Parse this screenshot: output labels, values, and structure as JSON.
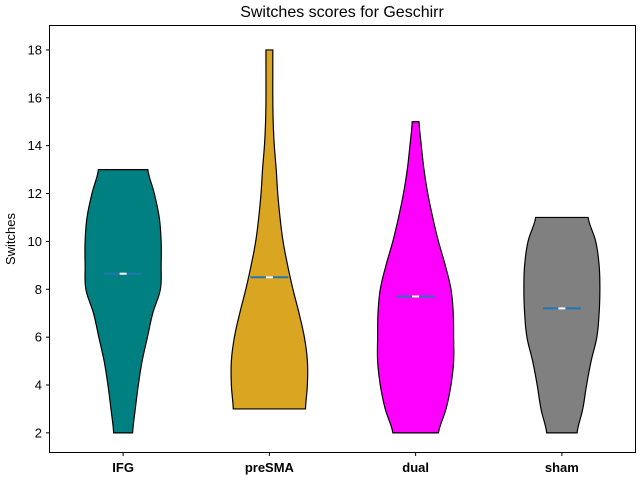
{
  "chart_data": {
    "type": "violin",
    "title": "Switches scores for Geschirr",
    "xlabel": "",
    "ylabel": "Switches",
    "ylim": [
      1.2,
      19.0
    ],
    "yticks": [
      2,
      4,
      6,
      8,
      10,
      12,
      14,
      16,
      18
    ],
    "grid": false,
    "categories": [
      "IFG",
      "preSMA",
      "dual",
      "sham"
    ],
    "series": [
      {
        "category": "IFG",
        "color": "#008080",
        "min": 2,
        "max": 13,
        "mean": 8.65,
        "density": [
          [
            2,
            0.25
          ],
          [
            3,
            0.32
          ],
          [
            4,
            0.4
          ],
          [
            5,
            0.5
          ],
          [
            6,
            0.64
          ],
          [
            7,
            0.78
          ],
          [
            8,
            0.98
          ],
          [
            9,
            1.0
          ],
          [
            10,
            1.0
          ],
          [
            11,
            0.95
          ],
          [
            12,
            0.82
          ],
          [
            13,
            0.65
          ]
        ]
      },
      {
        "category": "preSMA",
        "color": "#DAA520",
        "min": 3,
        "max": 18,
        "mean": 8.5,
        "density": [
          [
            3,
            0.95
          ],
          [
            4,
            1.0
          ],
          [
            5,
            1.0
          ],
          [
            6,
            0.92
          ],
          [
            7,
            0.78
          ],
          [
            8,
            0.62
          ],
          [
            9,
            0.48
          ],
          [
            10,
            0.36
          ],
          [
            11,
            0.28
          ],
          [
            12,
            0.22
          ],
          [
            13,
            0.18
          ],
          [
            14,
            0.13
          ],
          [
            15,
            0.1
          ],
          [
            16,
            0.09
          ],
          [
            17,
            0.09
          ],
          [
            18,
            0.09
          ]
        ]
      },
      {
        "category": "dual",
        "color": "#FF00FF",
        "min": 2,
        "max": 15,
        "mean": 7.7,
        "density": [
          [
            2,
            0.6
          ],
          [
            3,
            0.8
          ],
          [
            4,
            0.93
          ],
          [
            5,
            1.0
          ],
          [
            6,
            1.0
          ],
          [
            7,
            0.99
          ],
          [
            8,
            0.93
          ],
          [
            9,
            0.78
          ],
          [
            10,
            0.6
          ],
          [
            11,
            0.45
          ],
          [
            12,
            0.32
          ],
          [
            13,
            0.22
          ],
          [
            14,
            0.15
          ],
          [
            15,
            0.09
          ]
        ]
      },
      {
        "category": "sham",
        "color": "#808080",
        "min": 2,
        "max": 11,
        "mean": 7.2,
        "density": [
          [
            2,
            0.4
          ],
          [
            3,
            0.55
          ],
          [
            4,
            0.65
          ],
          [
            5,
            0.77
          ],
          [
            6,
            0.92
          ],
          [
            7,
            0.98
          ],
          [
            8,
            1.0
          ],
          [
            9,
            0.98
          ],
          [
            10,
            0.89
          ],
          [
            11,
            0.69
          ]
        ]
      }
    ]
  }
}
